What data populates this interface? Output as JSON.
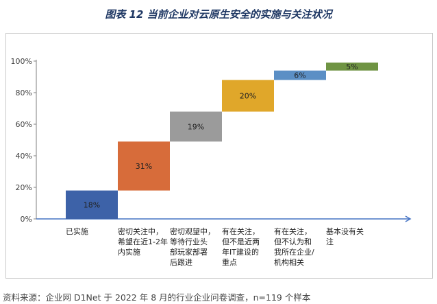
{
  "title": "图表 12 当前企业对云原生安全的实施与关注状况",
  "source": "资料来源：企业网 D1Net 于 2022 年 8 月的行业企业问卷调查，n=119 个样本",
  "chart_data": {
    "type": "bar",
    "subtype": "waterfall",
    "title": "图表 12 当前企业对云原生安全的实施与关注状况",
    "categories": [
      [
        "已实施"
      ],
      [
        "密切关注中，",
        "希望在近1-2年",
        "内实施"
      ],
      [
        "密切观望中，",
        "等待行业头",
        "部玩家部署",
        "后跟进"
      ],
      [
        "有在关注，",
        "但不是近两",
        "年IT建设的",
        "重点"
      ],
      [
        "有在关注，",
        "但不认为和",
        "我所在企业/",
        "机构相关"
      ],
      [
        "基本没有关",
        "注"
      ]
    ],
    "values": [
      18,
      31,
      19,
      20,
      6,
      5
    ],
    "value_labels": [
      "18%",
      "31%",
      "19%",
      "20%",
      "6%",
      "5%"
    ],
    "colors": [
      "#3d62a8",
      "#d76c3a",
      "#9b9b9b",
      "#e0a72a",
      "#5b8fc5",
      "#6f9443"
    ],
    "ylim": [
      0,
      100
    ],
    "yticks": [
      0,
      20,
      40,
      60,
      80,
      100
    ],
    "ytick_labels": [
      "0%",
      "20%",
      "40%",
      "60%",
      "80%",
      "100%"
    ],
    "grid": false,
    "legend": "none"
  }
}
